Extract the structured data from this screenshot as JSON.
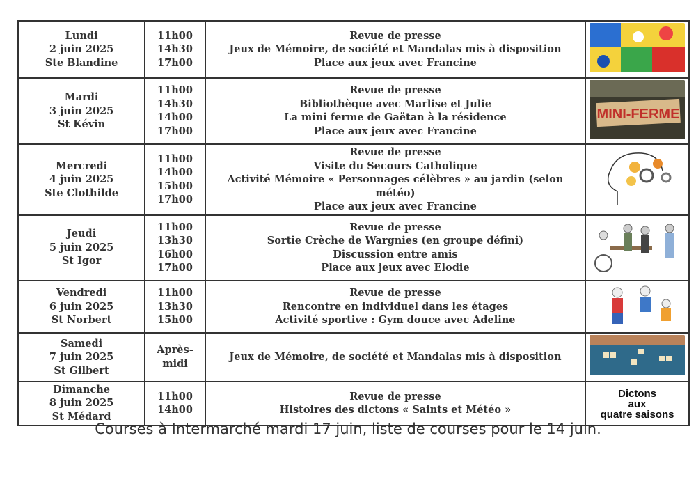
{
  "schedule": [
    {
      "day": "Lundi",
      "date": "2 juin 2025",
      "saint": "Ste Blandine",
      "times": [
        "11h00",
        "14h30",
        "17h00"
      ],
      "activities": [
        "Revue de presse",
        "Jeux de Mémoire, de société et Mandalas mis à disposition",
        "Place aux jeux avec Francine"
      ],
      "image": "board-games-picture",
      "height": 78
    },
    {
      "day": "Mardi",
      "date": "3 juin 2025",
      "saint": "St Kévin",
      "times": [
        "11h00",
        "14h30",
        "14h00",
        "17h00"
      ],
      "activities": [
        "Revue de presse",
        "Bibliothèque avec Marlise et Julie",
        "La mini ferme de Gaëtan à la résidence",
        "Place aux jeux avec Francine"
      ],
      "image": "mini-ferme-sign-picture",
      "image_text": "MINI-FERME",
      "height": 93
    },
    {
      "day": "Mercredi",
      "date": "4 juin 2025",
      "saint": "Ste Clothilde",
      "times": [
        "11h00",
        "14h00",
        "15h00",
        "17h00"
      ],
      "activities": [
        "Revue de presse",
        "Visite du Secours Catholique",
        "Activité Mémoire « Personnages célèbres » au jardin (selon météo)",
        "Place aux jeux avec Francine"
      ],
      "image": "brain-gears-picture",
      "height": 97
    },
    {
      "day": "Jeudi",
      "date": "5 juin 2025",
      "saint": "St Igor",
      "times": [
        "11h00",
        "13h30",
        "16h00",
        "17h00"
      ],
      "activities": [
        "Revue de presse",
        "Sortie Crèche de Wargnies (en groupe défini)",
        "Discussion entre amis",
        "Place aux jeux avec Elodie"
      ],
      "image": "seniors-bench-picture",
      "height": 94
    },
    {
      "day": "Vendredi",
      "date": "6 juin 2025",
      "saint": "St Norbert",
      "times": [
        "11h00",
        "13h30",
        "15h00"
      ],
      "activities": [
        "Revue de presse",
        "Rencontre en individuel dans les étages",
        "Activité sportive : Gym douce avec Adeline"
      ],
      "image": "seniors-gym-picture",
      "height": 75
    },
    {
      "day": "Samedi",
      "date": "7 juin 2025",
      "saint": "St Gilbert",
      "times": [
        "Après-",
        "midi"
      ],
      "activities": [
        "Jeux de Mémoire, de société et Mandalas mis à disposition"
      ],
      "image": "scrabble-picture",
      "height": 65
    },
    {
      "day": "Dimanche",
      "date": "8 juin 2025",
      "saint": "St Médard",
      "times": [
        "11h00",
        "14h00"
      ],
      "activities": [
        "Revue de presse",
        "Histoires des dictons « Saints et Météo »"
      ],
      "image": "dictons-book-picture",
      "image_text": [
        "Dictons",
        "aux",
        "quatre saisons"
      ],
      "height": 63
    }
  ],
  "footer": "Courses à Intermarché mardi 17 juin, liste de courses pour le 14 juin."
}
